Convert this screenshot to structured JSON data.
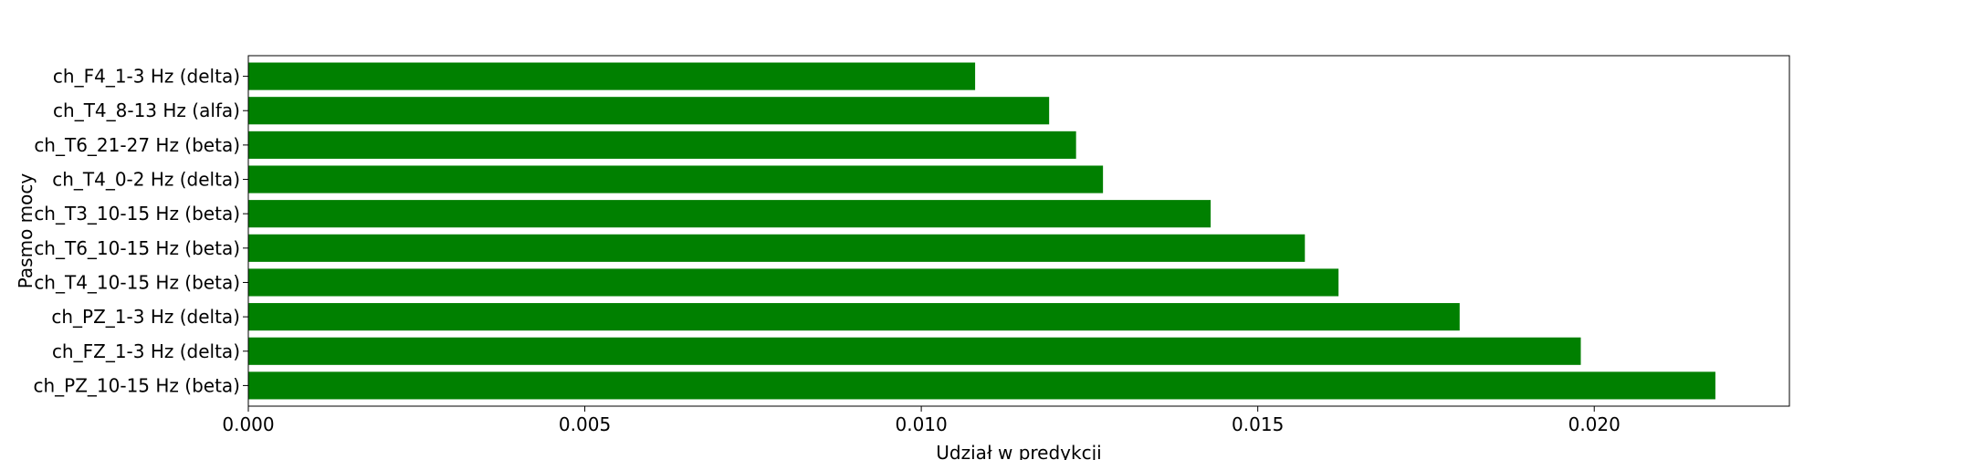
{
  "chart_data": {
    "type": "bar",
    "orientation": "horizontal",
    "title": "",
    "xlabel": "Udział w predykcji",
    "ylabel": "Pasmo mocy",
    "categories": [
      "ch_PZ_10-15 Hz (beta)",
      "ch_FZ_1-3 Hz (delta)",
      "ch_PZ_1-3 Hz (delta)",
      "ch_T4_10-15 Hz (beta)",
      "ch_T6_10-15 Hz (beta)",
      "ch_T3_10-15 Hz (beta)",
      "ch_T4_0-2 Hz (delta)",
      "ch_T6_21-27 Hz (beta)",
      "ch_T4_8-13 Hz (alfa)",
      "ch_F4_1-3 Hz (delta)"
    ],
    "values": [
      0.0218,
      0.0198,
      0.018,
      0.0162,
      0.0157,
      0.0143,
      0.0127,
      0.0123,
      0.0119,
      0.0108
    ],
    "xlim": [
      0,
      0.0229
    ],
    "xticks": [
      {
        "value": 0.0,
        "label": "0.000"
      },
      {
        "value": 0.005,
        "label": "0.005"
      },
      {
        "value": 0.01,
        "label": "0.010"
      },
      {
        "value": 0.015,
        "label": "0.015"
      },
      {
        "value": 0.02,
        "label": "0.020"
      }
    ],
    "bar_color": "#008000",
    "grid": false,
    "legend": false
  }
}
